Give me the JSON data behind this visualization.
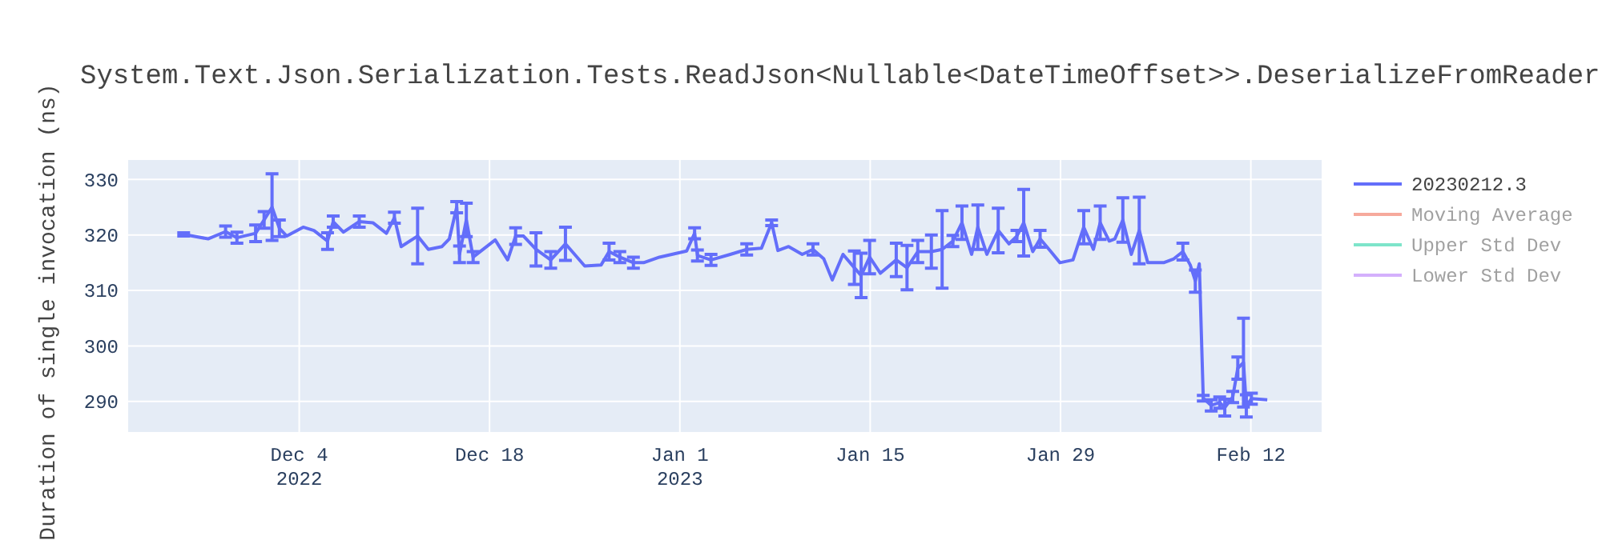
{
  "chart_data": {
    "type": "line",
    "title": "System.Text.Json.Serialization.Tests.ReadJson<Nullable<DateTimeOffset>>.DeserializeFromReader",
    "ylabel": "Duration of single invocation (ns)",
    "xlim": [
      "2022-11-21T10:00",
      "2023-02-17T05:00"
    ],
    "xticks": [
      {
        "value": "2022-12-04",
        "label": "Dec 4\n2022"
      },
      {
        "value": "2022-12-18",
        "label": "Dec 18"
      },
      {
        "value": "2023-01-01",
        "label": "Jan 1\n2023"
      },
      {
        "value": "2023-01-15",
        "label": "Jan 15"
      },
      {
        "value": "2023-01-29",
        "label": "Jan 29"
      },
      {
        "value": "2023-02-12",
        "label": "Feb 12"
      }
    ],
    "ylim": [
      284.5,
      333.5
    ],
    "yticks": [
      290,
      300,
      310,
      320,
      330
    ],
    "grid": true,
    "legend": "top right",
    "series": [
      {
        "name": "20230212.3",
        "color": "#636efa",
        "x": [
          "2022-11-25T12:00",
          "2022-11-27T07:00",
          "2022-11-28T14:00",
          "2022-11-29T10:00",
          "2022-11-30T19:00",
          "2022-12-01T10:00",
          "2022-12-02T00:00",
          "2022-12-02T13:00",
          "2022-12-03T02:00",
          "2022-12-04T07:00",
          "2022-12-05T02:00",
          "2022-12-06T02:00",
          "2022-12-06T12:00",
          "2022-12-07T06:00",
          "2022-12-08T10:00",
          "2022-12-09T10:00",
          "2022-12-10T10:00",
          "2022-12-11T00:00",
          "2022-12-11T12:00",
          "2022-12-12T17:00",
          "2022-12-13T12:00",
          "2022-12-14T12:00",
          "2022-12-15T01:00",
          "2022-12-15T14:00",
          "2022-12-15T19:00",
          "2022-12-16T07:00",
          "2022-12-16T19:00",
          "2022-12-18T10:00",
          "2022-12-19T08:00",
          "2022-12-19T22:00",
          "2022-12-20T12:00",
          "2022-12-21T10:00",
          "2022-12-22T12:00",
          "2022-12-23T14:00",
          "2022-12-25T00:00",
          "2022-12-26T05:00",
          "2022-12-26T19:00",
          "2022-12-27T14:00",
          "2022-12-28T14:00",
          "2022-12-29T08:00",
          "2022-12-30T12:00",
          "2023-01-01T12:00",
          "2023-01-02T02:00",
          "2023-01-02T07:00",
          "2023-01-03T07:00",
          "2023-01-04T17:00",
          "2023-01-05T22:00",
          "2023-01-07T00:00",
          "2023-01-07T18:00",
          "2023-01-08T05:00",
          "2023-01-09T00:00",
          "2023-01-10T00:00",
          "2023-01-10T19:00",
          "2023-01-11T14:00",
          "2023-01-12T05:00",
          "2023-01-13T00:00",
          "2023-01-13T20:00",
          "2023-01-14T08:00",
          "2023-01-14T23:00",
          "2023-01-15T18:00",
          "2023-01-16T22:00",
          "2023-01-17T17:00",
          "2023-01-18T12:00",
          "2023-01-19T12:00",
          "2023-01-20T07:00",
          "2023-01-21T02:00",
          "2023-01-21T18:00",
          "2023-01-22T11:00",
          "2023-01-22T22:00",
          "2023-01-23T14:00",
          "2023-01-24T10:00",
          "2023-01-25T05:00",
          "2023-01-25T19:00",
          "2023-01-26T07:00",
          "2023-01-26T23:00",
          "2023-01-27T12:00",
          "2023-01-28T07:00",
          "2023-01-28T23:00",
          "2023-01-29T22:00",
          "2023-01-30T17:00",
          "2023-01-31T10:00",
          "2023-01-31T22:00",
          "2023-02-01T14:00",
          "2023-02-02T00:00",
          "2023-02-02T14:00",
          "2023-02-03T05:00",
          "2023-02-03T19:00",
          "2023-02-04T10:00",
          "2023-02-05T14:00",
          "2023-02-06T08:00",
          "2023-02-07T00:00",
          "2023-02-07T13:00",
          "2023-02-07T22:00",
          "2023-02-08T05:00",
          "2023-02-08T12:00",
          "2023-02-09T02:00",
          "2023-02-09T17:00",
          "2023-02-10T02:00",
          "2023-02-10T16:00",
          "2023-02-11T01:00",
          "2023-02-11T11:00",
          "2023-02-11T16:00",
          "2023-02-12T01:00",
          "2023-02-13T05:00"
        ],
        "values": [
          320.1,
          319.3,
          320.6,
          319.5,
          320.3,
          322.7,
          325,
          321.2,
          319.8,
          321.4,
          320.8,
          318.9,
          322.4,
          320.5,
          322.4,
          322.2,
          320.3,
          323.1,
          317.9,
          319.8,
          317.4,
          317.9,
          319.3,
          325,
          316.5,
          322.7,
          316,
          319.1,
          315.5,
          319.8,
          319.8,
          317.4,
          315.5,
          318.4,
          314.4,
          314.6,
          317,
          316,
          315,
          315,
          316,
          317.1,
          320.3,
          316.3,
          315.5,
          316.5,
          317.4,
          317.6,
          322.2,
          317.2,
          317.9,
          316.5,
          317.4,
          315.7,
          311.9,
          316.5,
          314.1,
          312.7,
          316,
          313.1,
          315.5,
          314.1,
          317,
          317,
          317.4,
          318.9,
          322.2,
          316.5,
          321.4,
          316.5,
          320.8,
          318.4,
          319.8,
          322.2,
          317,
          319.3,
          317,
          315,
          315.5,
          321.4,
          317.4,
          322.2,
          318.9,
          319.3,
          322.7,
          316.5,
          320.8,
          315,
          315,
          315.7,
          317,
          314.6,
          311.7,
          314.8,
          290.6,
          289.3,
          289.8,
          288.9,
          290.8,
          296,
          297,
          289.2,
          290.5,
          290.3
        ],
        "errors": [
          0.3,
          null,
          1,
          1,
          1.5,
          1.5,
          6,
          1.5,
          null,
          null,
          null,
          1.5,
          1,
          null,
          1,
          null,
          null,
          1,
          null,
          5,
          null,
          null,
          null,
          1,
          1.5,
          3,
          1,
          null,
          null,
          1.5,
          null,
          3,
          1.5,
          3,
          null,
          null,
          1.5,
          1,
          1,
          null,
          null,
          null,
          1,
          1,
          1,
          null,
          1,
          null,
          0.5,
          null,
          null,
          null,
          1,
          null,
          null,
          null,
          3,
          4,
          3,
          null,
          3,
          4,
          2,
          3,
          7,
          1,
          3,
          null,
          4,
          null,
          4,
          null,
          1,
          6,
          null,
          1.5,
          null,
          null,
          null,
          3,
          null,
          3,
          null,
          null,
          4,
          null,
          6,
          null,
          null,
          null,
          1.5,
          null,
          2,
          null,
          0.5,
          1,
          1,
          1.5,
          1,
          2,
          8,
          2,
          1,
          null
        ]
      },
      {
        "name": "Moving Average",
        "color": "#ef553b"
      },
      {
        "name": "Upper Std Dev",
        "color": "#00cc96"
      },
      {
        "name": "Lower Std Dev",
        "color": "#ab63fa"
      }
    ]
  }
}
